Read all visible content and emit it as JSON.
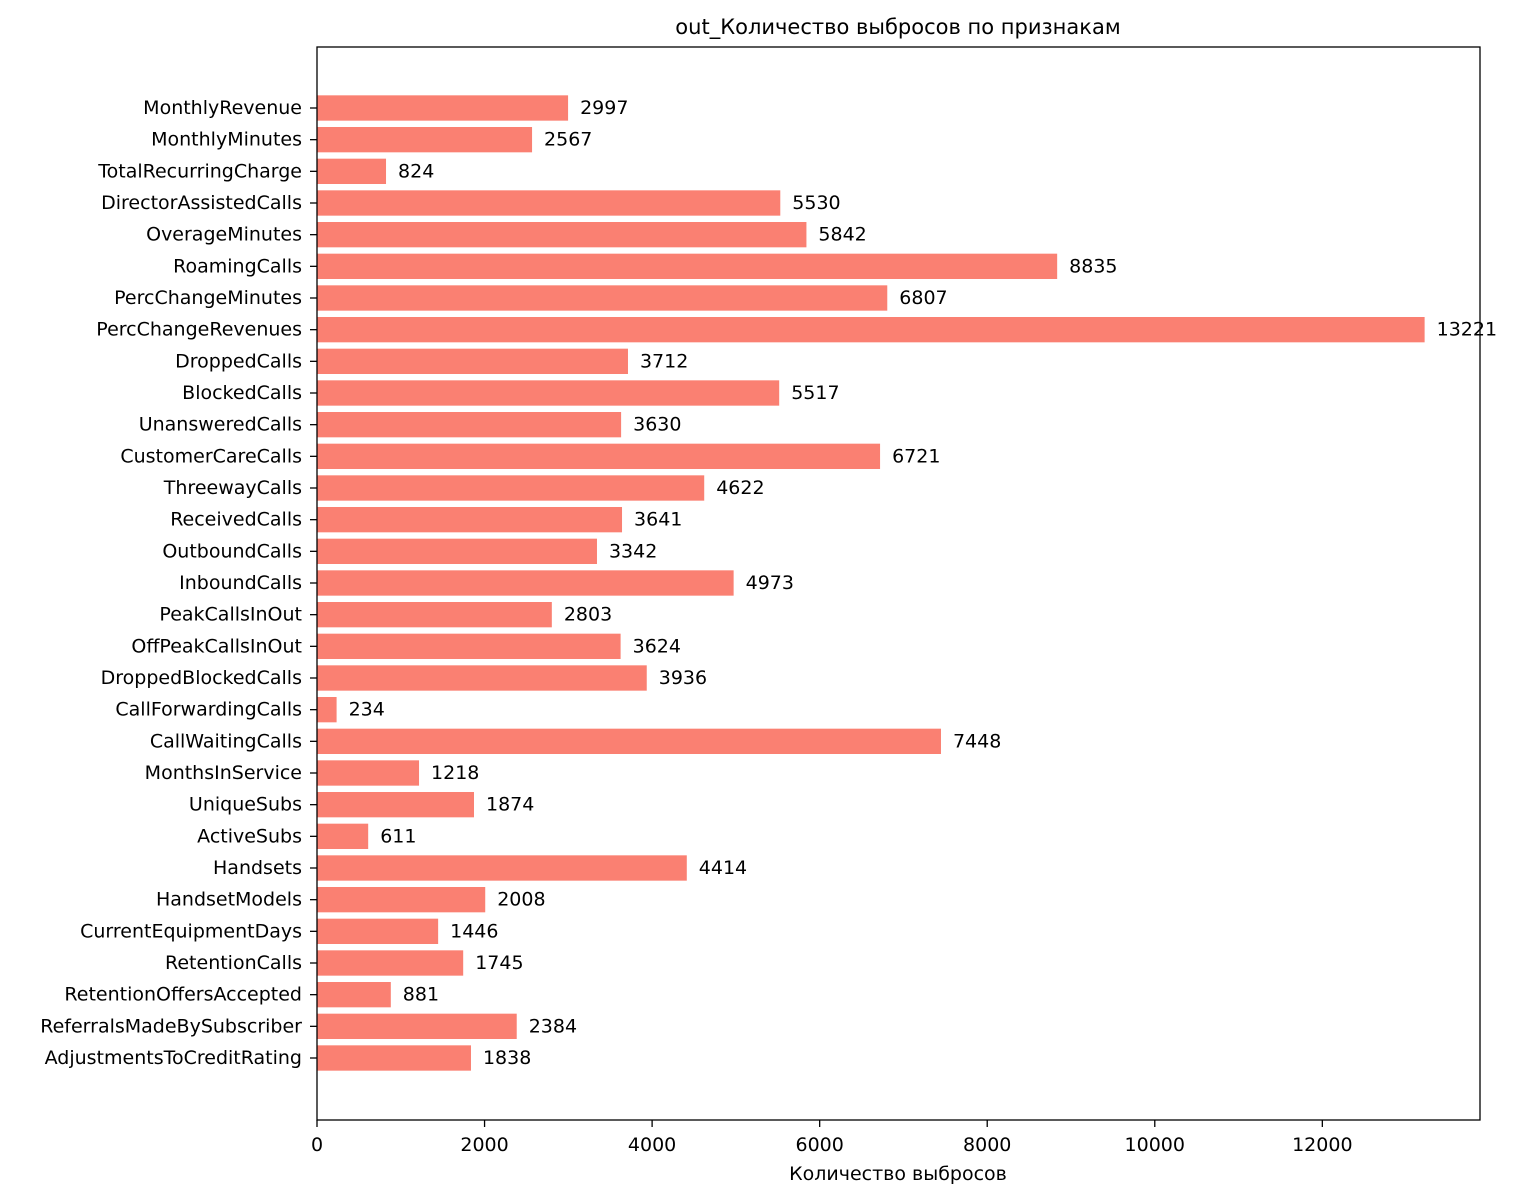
{
  "chart_data": {
    "type": "bar",
    "orientation": "horizontal",
    "title": "out_Количество выбросов по признакам",
    "xlabel": "Количество выбросов",
    "ylabel": "",
    "xlim": [
      0,
      13882
    ],
    "x_ticks": [
      0,
      2000,
      4000,
      6000,
      8000,
      10000,
      12000
    ],
    "x_tick_labels": [
      "0",
      "2000",
      "4000",
      "6000",
      "8000",
      "10000",
      "12000"
    ],
    "grid": false,
    "bar_color": "#fa8072",
    "categories": [
      "MonthlyRevenue",
      "MonthlyMinutes",
      "TotalRecurringCharge",
      "DirectorAssistedCalls",
      "OverageMinutes",
      "RoamingCalls",
      "PercChangeMinutes",
      "PercChangeRevenues",
      "DroppedCalls",
      "BlockedCalls",
      "UnansweredCalls",
      "CustomerCareCalls",
      "ThreewayCalls",
      "ReceivedCalls",
      "OutboundCalls",
      "InboundCalls",
      "PeakCallsInOut",
      "OffPeakCallsInOut",
      "DroppedBlockedCalls",
      "CallForwardingCalls",
      "CallWaitingCalls",
      "MonthsInService",
      "UniqueSubs",
      "ActiveSubs",
      "Handsets",
      "HandsetModels",
      "CurrentEquipmentDays",
      "RetentionCalls",
      "RetentionOffersAccepted",
      "ReferralsMadeBySubscriber",
      "AdjustmentsToCreditRating"
    ],
    "values": [
      2997,
      2567,
      824,
      5530,
      5842,
      8835,
      6807,
      13221,
      3712,
      5517,
      3630,
      6721,
      4622,
      3641,
      3342,
      4973,
      2803,
      3624,
      3936,
      234,
      7448,
      1218,
      1874,
      611,
      4414,
      2008,
      1446,
      1745,
      881,
      2384,
      1838
    ],
    "value_labels": [
      "2997",
      "2567",
      "824",
      "5530",
      "5842",
      "8835",
      "6807",
      "13221",
      "3712",
      "5517",
      "3630",
      "6721",
      "4622",
      "3641",
      "3342",
      "4973",
      "2803",
      "3624",
      "3936",
      "234",
      "7448",
      "1218",
      "1874",
      "611",
      "4414",
      "2008",
      "1446",
      "1745",
      "881",
      "2384",
      "1838"
    ]
  }
}
